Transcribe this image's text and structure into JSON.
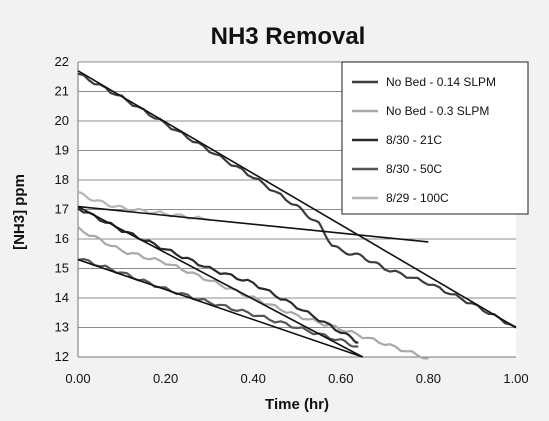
{
  "chart_data": {
    "type": "line",
    "title": "NH3 Removal",
    "xlabel": "Time (hr)",
    "ylabel": "[NH3] ppm",
    "xlim": [
      0,
      1.0
    ],
    "ylim": [
      12,
      22
    ],
    "x_ticks": [
      "0.00",
      "0.20",
      "0.40",
      "0.60",
      "0.80",
      "1.00"
    ],
    "y_ticks": [
      "12",
      "13",
      "14",
      "15",
      "16",
      "17",
      "18",
      "19",
      "20",
      "21",
      "22"
    ],
    "grid": "horizontal",
    "legend_position": "top-right",
    "series": [
      {
        "name": "No Bed - 0.14 SLPM",
        "color": "#3c3c3c",
        "x": [
          0.0,
          0.1,
          0.2,
          0.3,
          0.4,
          0.5,
          0.55,
          0.58,
          0.6,
          0.65,
          0.7,
          0.8,
          0.9,
          1.0
        ],
        "y": [
          21.6,
          20.8,
          19.9,
          19.0,
          18.1,
          17.1,
          16.5,
          15.8,
          15.6,
          15.4,
          15.0,
          14.5,
          13.8,
          13.0
        ]
      },
      {
        "name": "No Bed - 0.3 SLPM",
        "color": "#a8a8a8",
        "x": [
          0.0,
          0.1,
          0.2,
          0.3,
          0.4,
          0.5,
          0.6,
          0.7,
          0.8
        ],
        "y": [
          16.35,
          15.6,
          15.2,
          14.6,
          14.0,
          13.4,
          12.95,
          12.45,
          11.95
        ]
      },
      {
        "name": "8/30 - 21C",
        "color": "#2a2a2a",
        "x": [
          0.0,
          0.1,
          0.2,
          0.3,
          0.4,
          0.5,
          0.6,
          0.64
        ],
        "y": [
          17.05,
          16.3,
          15.65,
          15.0,
          14.5,
          13.7,
          12.85,
          12.5
        ]
      },
      {
        "name": "8/30 - 50C",
        "color": "#555555",
        "x": [
          0.0,
          0.1,
          0.2,
          0.3,
          0.4,
          0.5,
          0.6,
          0.64
        ],
        "y": [
          15.35,
          14.85,
          14.3,
          13.85,
          13.45,
          13.0,
          12.55,
          12.35
        ]
      },
      {
        "name": "8/29 - 100C",
        "color": "#b5b5b5",
        "x": [
          0.0,
          0.05,
          0.1,
          0.2,
          0.3
        ],
        "y": [
          17.55,
          17.25,
          17.05,
          16.85,
          16.65
        ]
      }
    ],
    "trendlines": [
      {
        "x": [
          0.0,
          1.0
        ],
        "y": [
          21.7,
          13.0
        ]
      },
      {
        "x": [
          0.0,
          0.8
        ],
        "y": [
          17.1,
          15.9
        ]
      },
      {
        "x": [
          0.0,
          0.65
        ],
        "y": [
          17.1,
          12.0
        ]
      },
      {
        "x": [
          0.0,
          0.65
        ],
        "y": [
          15.3,
          12.0
        ]
      }
    ]
  }
}
